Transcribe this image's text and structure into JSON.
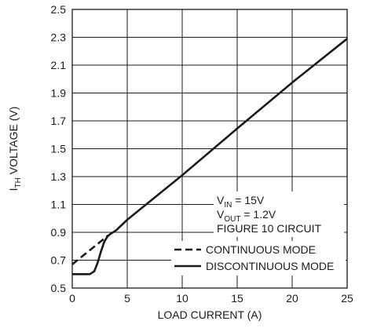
{
  "chart_data": {
    "type": "line",
    "title": "",
    "xlabel": "LOAD CURRENT (A)",
    "ylabel": {
      "main": "I",
      "sub": "TH",
      "rest": " VOLTAGE (V)"
    },
    "xlim": [
      0,
      25
    ],
    "ylim": [
      0.5,
      2.5
    ],
    "xticks": [
      0,
      5,
      10,
      15,
      20,
      25
    ],
    "yticks": [
      "0.5",
      "0.7",
      "0.9",
      "1.1",
      "1.3",
      "1.5",
      "1.7",
      "1.9",
      "2.1",
      "2.3",
      "2.5"
    ],
    "grid": true,
    "series": [
      {
        "name": "CONTINUOUS MODE",
        "style": "dashed",
        "x": [
          0,
          3.3
        ],
        "y": [
          0.67,
          0.88
        ]
      },
      {
        "name": "DISCONTINUOUS MODE",
        "style": "solid",
        "x": [
          0,
          1.0,
          1.6,
          2.0,
          2.3,
          2.6,
          2.9,
          3.2,
          3.5,
          4.0,
          5,
          10,
          15,
          20,
          25
        ],
        "y": [
          0.6,
          0.6,
          0.6,
          0.62,
          0.68,
          0.76,
          0.83,
          0.87,
          0.89,
          0.915,
          0.99,
          1.31,
          1.645,
          1.975,
          2.29
        ]
      }
    ],
    "annotations": [
      {
        "main": "V",
        "sub": "IN",
        "rest": " = 15V"
      },
      {
        "main": "V",
        "sub": "OUT",
        "rest": " = 1.2V"
      },
      {
        "main": "FIGURE 10 CIRCUIT",
        "sub": "",
        "rest": ""
      }
    ],
    "legend_position": "bottom-right",
    "colors": {
      "line": "#1a1a1a",
      "grid": "#1a1a1a"
    }
  }
}
